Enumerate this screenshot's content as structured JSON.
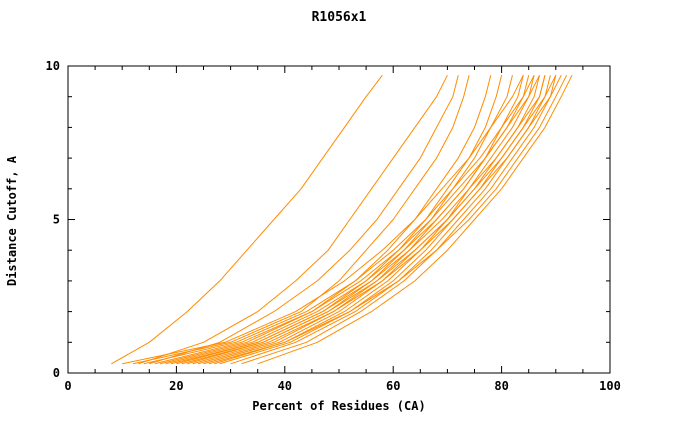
{
  "title": "R1056x1",
  "chart_data": {
    "type": "line",
    "title": "R1056x1",
    "xlabel": "Percent of Residues (CA)",
    "ylabel": "Distance Cutoff, A",
    "xlim": [
      0,
      100
    ],
    "ylim": [
      0,
      10
    ],
    "x_major_ticks": [
      0,
      20,
      40,
      60,
      80,
      100
    ],
    "x_tick_labels": [
      "0",
      "20",
      "40",
      "60",
      "80",
      "100"
    ],
    "x_minor_step": 5,
    "y_major_ticks": [
      0,
      5,
      10
    ],
    "y_tick_labels": [
      "0",
      "5",
      "10"
    ],
    "y_minor_step": 1,
    "grid": false,
    "legend": "none",
    "line_color": "#ff8c00",
    "axis_color": "#000000",
    "y_levels": [
      0.3,
      1,
      2,
      3,
      4,
      5,
      6,
      7,
      8,
      9,
      9.7
    ],
    "series_x": [
      [
        8,
        15,
        22,
        28,
        33,
        38,
        43,
        47,
        51,
        55,
        58
      ],
      [
        13,
        25,
        35,
        42,
        48,
        52,
        56,
        60,
        64,
        68,
        70
      ],
      [
        15,
        28,
        38,
        46,
        52,
        57,
        61,
        65,
        68,
        71,
        72
      ],
      [
        12,
        30,
        43,
        50,
        55,
        60,
        64,
        68,
        71,
        73,
        74
      ],
      [
        17,
        33,
        45,
        53,
        59,
        64,
        68,
        72,
        75,
        77,
        78
      ],
      [
        20,
        35,
        47,
        55,
        61,
        66,
        70,
        74,
        77,
        79,
        80
      ],
      [
        22,
        36,
        48,
        56,
        62,
        67,
        71,
        75,
        78,
        81,
        82
      ],
      [
        24,
        38,
        49,
        57,
        63,
        68,
        73,
        77,
        80,
        83,
        84
      ],
      [
        18,
        34,
        46,
        55,
        62,
        68,
        73,
        77,
        81,
        84,
        85
      ],
      [
        25,
        39,
        50,
        58,
        64,
        70,
        74,
        78,
        82,
        85,
        86
      ],
      [
        27,
        40,
        51,
        59,
        65,
        70,
        75,
        79,
        83,
        86,
        87
      ],
      [
        28,
        41,
        52,
        60,
        66,
        71,
        76,
        80,
        84,
        87,
        88
      ],
      [
        30,
        42,
        53,
        61,
        67,
        72,
        77,
        81,
        85,
        88,
        89
      ],
      [
        32,
        44,
        54,
        62,
        68,
        73,
        78,
        82,
        86,
        89,
        90
      ],
      [
        35,
        46,
        56,
        64,
        70,
        75,
        80,
        84,
        88,
        91,
        93
      ],
      [
        10,
        29,
        42,
        51,
        58,
        64,
        69,
        74,
        78,
        82,
        84
      ],
      [
        14,
        31,
        44,
        53,
        60,
        66,
        71,
        76,
        80,
        84,
        86
      ],
      [
        16,
        32,
        45,
        54,
        61,
        67,
        72,
        77,
        81,
        85,
        87
      ],
      [
        19,
        35,
        47,
        56,
        63,
        69,
        74,
        79,
        83,
        87,
        88
      ],
      [
        21,
        36,
        48,
        57,
        64,
        70,
        75,
        80,
        84,
        88,
        90
      ],
      [
        23,
        37,
        49,
        58,
        65,
        71,
        76,
        81,
        85,
        89,
        91
      ],
      [
        26,
        40,
        52,
        61,
        68,
        74,
        79,
        83,
        87,
        90,
        92
      ]
    ]
  }
}
